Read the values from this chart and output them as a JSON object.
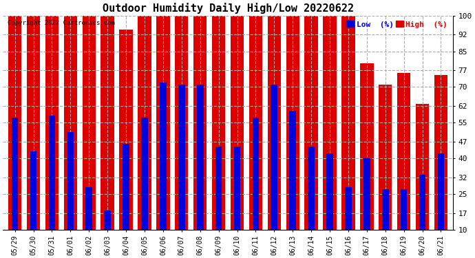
{
  "title": "Outdoor Humidity Daily High/Low 20220622",
  "copyright": "Copyright 2022 Cartronics.com",
  "legend_low": "Low  (%)",
  "legend_high": "High  (%)",
  "color_low": "#0000dd",
  "color_high": "#dd0000",
  "bg_color": "#ffffff",
  "grid_color": "#aaaaaa",
  "ylim_min": 10,
  "ylim_max": 100,
  "yticks": [
    10,
    17,
    25,
    32,
    40,
    47,
    55,
    62,
    70,
    77,
    85,
    92,
    100
  ],
  "dates": [
    "05/29",
    "05/30",
    "05/31",
    "06/01",
    "06/02",
    "06/03",
    "06/04",
    "06/05",
    "06/06",
    "06/07",
    "06/08",
    "06/09",
    "06/10",
    "06/11",
    "06/12",
    "06/13",
    "06/14",
    "06/15",
    "06/16",
    "06/17",
    "06/18",
    "06/19",
    "06/20",
    "06/21"
  ],
  "high_values": [
    100,
    100,
    100,
    100,
    100,
    100,
    94,
    100,
    100,
    100,
    100,
    100,
    100,
    100,
    100,
    100,
    100,
    100,
    100,
    80,
    71,
    76,
    63,
    75
  ],
  "low_values": [
    57,
    43,
    58,
    51,
    28,
    18,
    46,
    57,
    72,
    71,
    71,
    45,
    45,
    57,
    71,
    60,
    45,
    42,
    28,
    40,
    27,
    27,
    33,
    42
  ]
}
